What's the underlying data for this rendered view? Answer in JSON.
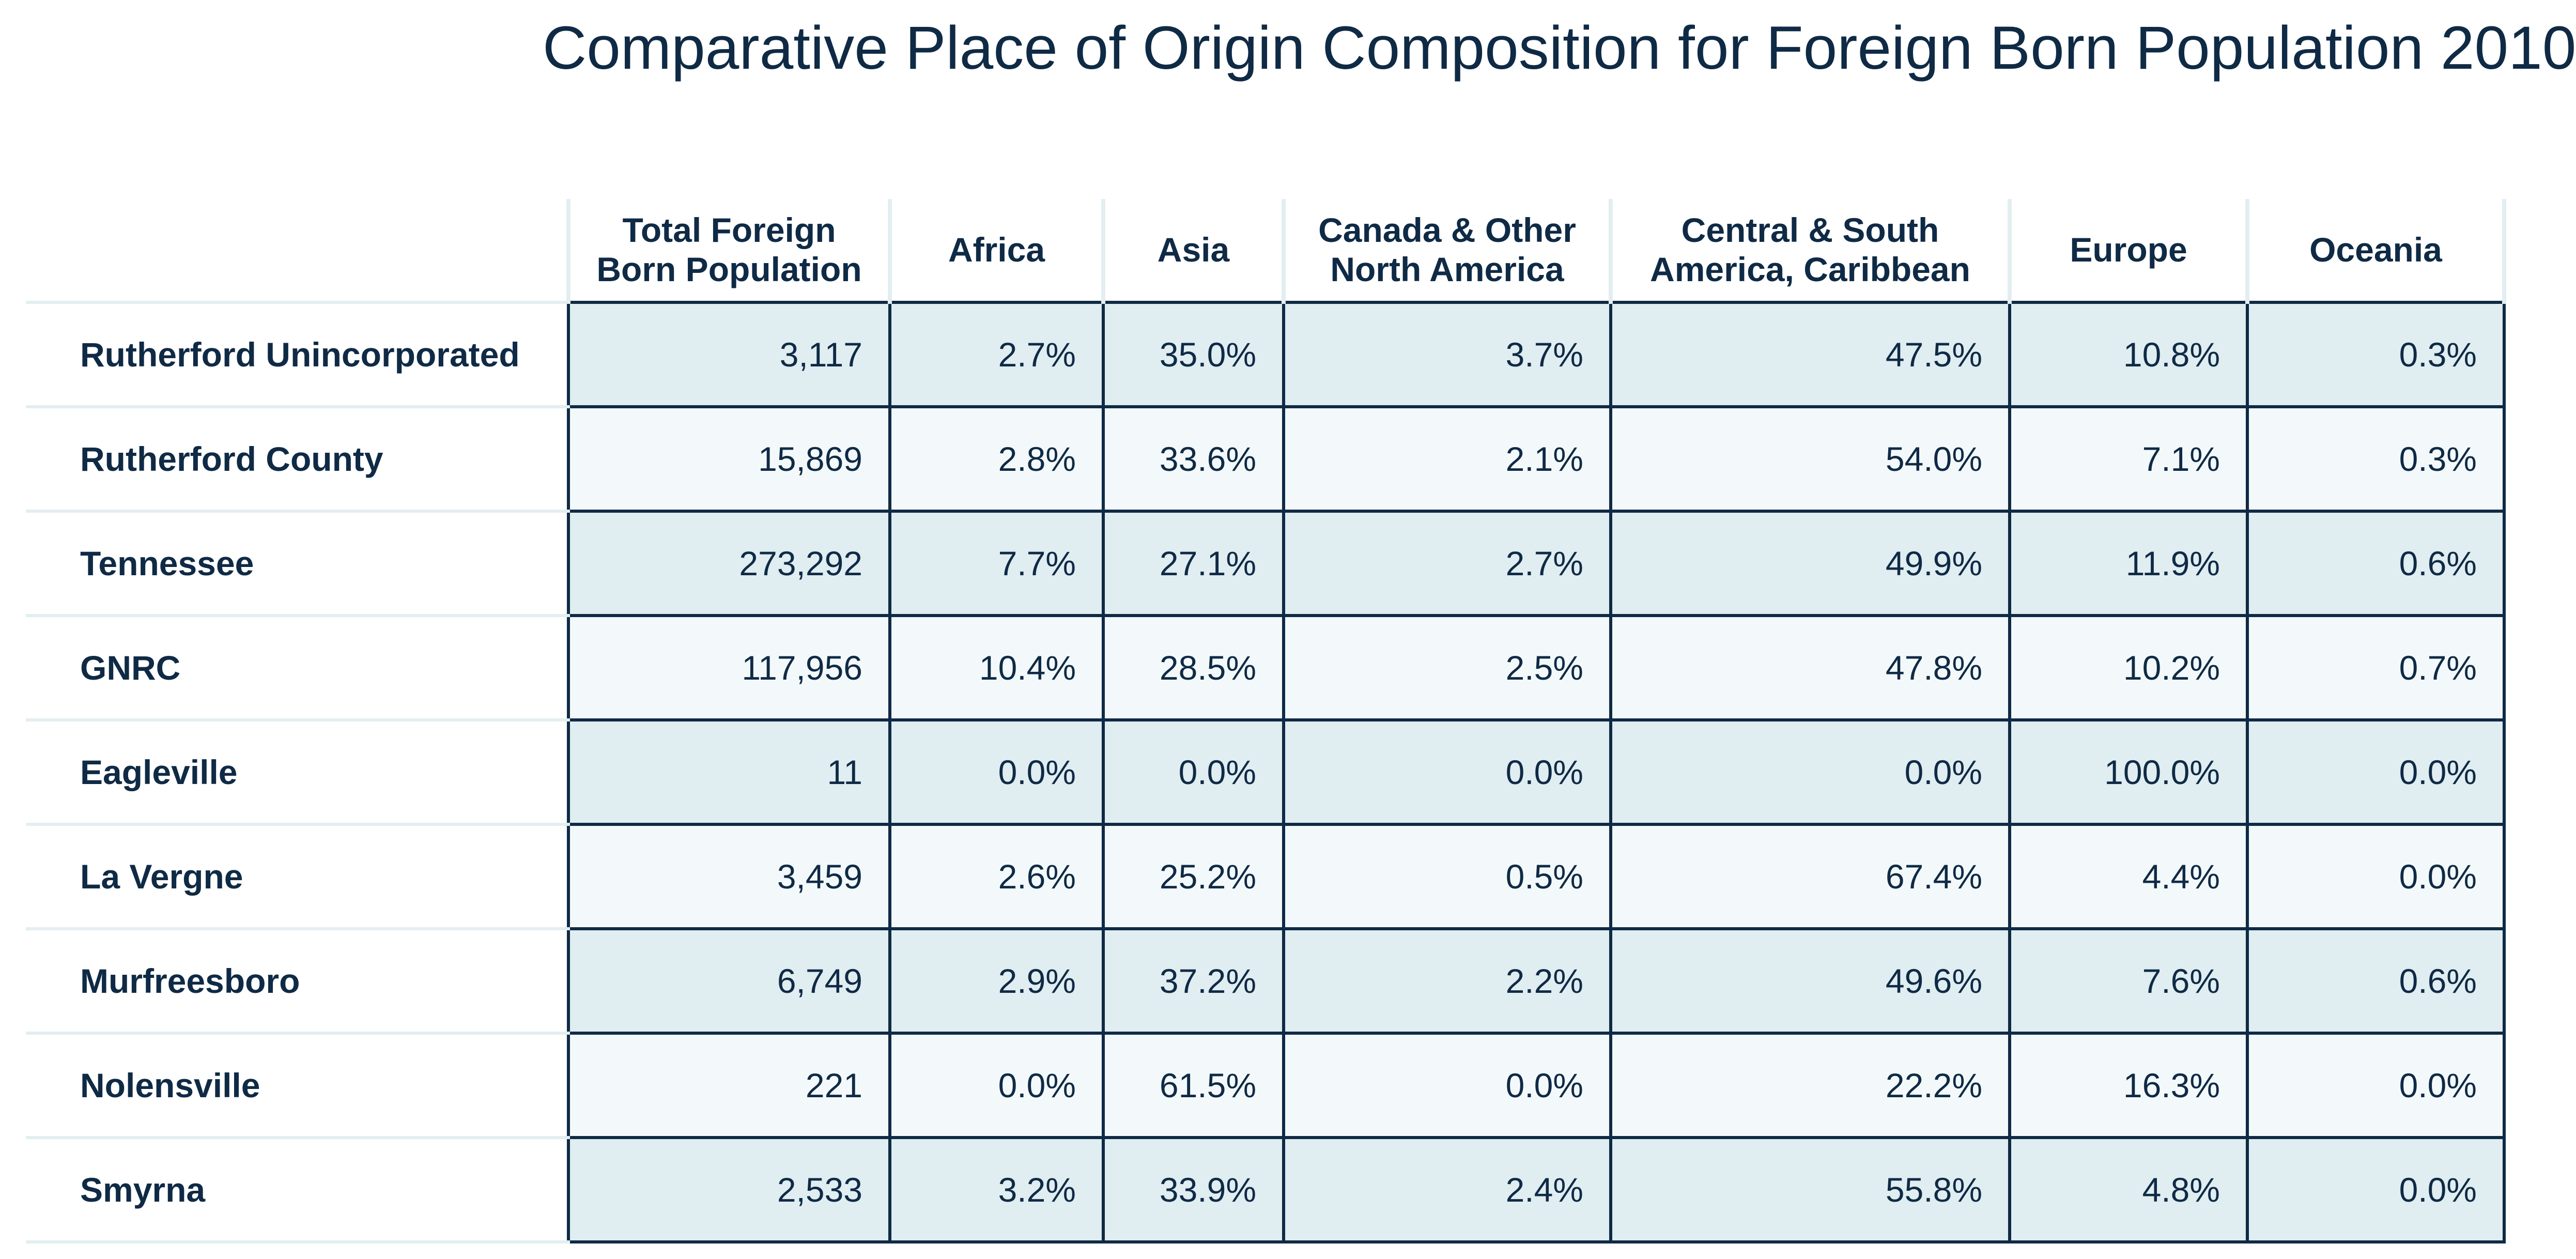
{
  "title": "Comparative Place of Origin Composition for Foreign Born Population 2010",
  "headers": [
    "Total Foreign\nBorn Population",
    "Africa",
    "Asia",
    "Canada & Other\nNorth America",
    "Central & South\nAmerica, Caribbean",
    "Europe",
    "Oceania"
  ],
  "rows": [
    {
      "label": "Rutherford Unincorporated",
      "values": [
        "3,117",
        "2.7%",
        "35.0%",
        "3.7%",
        "47.5%",
        "10.8%",
        "0.3%"
      ]
    },
    {
      "label": "Rutherford County",
      "values": [
        "15,869",
        "2.8%",
        "33.6%",
        "2.1%",
        "54.0%",
        "7.1%",
        "0.3%"
      ]
    },
    {
      "label": "Tennessee",
      "values": [
        "273,292",
        "7.7%",
        "27.1%",
        "2.7%",
        "49.9%",
        "11.9%",
        "0.6%"
      ]
    },
    {
      "label": "GNRC",
      "values": [
        "117,956",
        "10.4%",
        "28.5%",
        "2.5%",
        "47.8%",
        "10.2%",
        "0.7%"
      ]
    },
    {
      "label": "Eagleville",
      "values": [
        "11",
        "0.0%",
        "0.0%",
        "0.0%",
        "0.0%",
        "100.0%",
        "0.0%"
      ]
    },
    {
      "label": "La Vergne",
      "values": [
        "3,459",
        "2.6%",
        "25.2%",
        "0.5%",
        "67.4%",
        "4.4%",
        "0.0%"
      ]
    },
    {
      "label": "Murfreesboro",
      "values": [
        "6,749",
        "2.9%",
        "37.2%",
        "2.2%",
        "49.6%",
        "7.6%",
        "0.6%"
      ]
    },
    {
      "label": "Nolensville",
      "values": [
        "221",
        "0.0%",
        "61.5%",
        "0.0%",
        "22.2%",
        "16.3%",
        "0.0%"
      ]
    },
    {
      "label": "Smyrna",
      "values": [
        "2,533",
        "3.2%",
        "33.9%",
        "2.4%",
        "55.8%",
        "4.8%",
        "0.0%"
      ]
    }
  ],
  "colors": {
    "text": "#0f2a45",
    "row_shaded": "#e0edf1",
    "row_light": "#f3f9fa",
    "divider": "#e3eef1"
  }
}
